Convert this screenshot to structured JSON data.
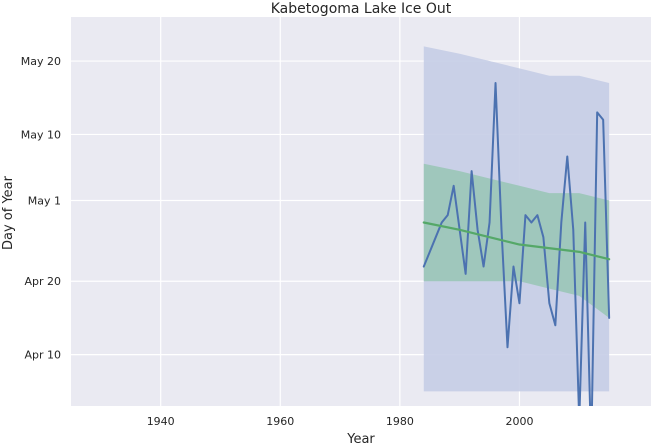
{
  "chart_data": {
    "type": "line",
    "title": "Kabetogoma Lake Ice Out",
    "xlabel": "Year",
    "ylabel": "Day of Year",
    "xlim": [
      1925,
      2022
    ],
    "ylim": [
      "Apr 3",
      "May 26"
    ],
    "grid": true,
    "legend": "none",
    "x_ticks": [
      "1940",
      "1960",
      "1980",
      "2000"
    ],
    "y_ticks": [
      {
        "date": "Apr 10",
        "label": "Apr 10"
      },
      {
        "date": "Apr 20",
        "label": "Apr 20"
      },
      {
        "date": "May 1",
        "label": "May 1"
      },
      {
        "date": "May 10",
        "label": "May 10"
      },
      {
        "date": "May 20",
        "label": "May 20"
      }
    ],
    "colors": {
      "plot_bg": "#eaeaf2",
      "grid": "#ffffff",
      "observed": "#4c72b0",
      "trend": "#55a868",
      "band_outer": "#c5cde6",
      "band_inner": "#98c6b4"
    },
    "series": [
      {
        "role": "observed",
        "x": [
          1984,
          1985,
          1986,
          1987,
          1988,
          1989,
          1990,
          1991,
          1992,
          1993,
          1994,
          1995,
          1996,
          1997,
          1998,
          1999,
          2000,
          2001,
          2002,
          2003,
          2004,
          2005,
          2006,
          2007,
          2008,
          2009,
          2010,
          2011,
          2012,
          2013,
          2014,
          2015
        ],
        "y": [
          "Apr 22",
          "Apr 24",
          "Apr 26",
          "Apr 28",
          "Apr 29",
          "May 3",
          "Apr 27",
          "Apr 21",
          "May 5",
          "Apr 27",
          "Apr 22",
          "Apr 28",
          "May 17",
          "Apr 27",
          "Apr 11",
          "Apr 22",
          "Apr 17",
          "Apr 29",
          "Apr 28",
          "Apr 29",
          "Apr 26",
          "Apr 17",
          "Apr 14",
          "Apr 28",
          "May 7",
          "Apr 27",
          "Apr 1",
          "Apr 28",
          "Mar 28",
          "May 13",
          "May 12",
          "Apr 15"
        ]
      },
      {
        "role": "trend",
        "x": [
          1984,
          1990,
          2000,
          2010,
          2015
        ],
        "y": [
          "Apr 28",
          "Apr 27",
          "Apr 25",
          "Apr 24",
          "Apr 23"
        ]
      },
      {
        "role": "band_outer",
        "x": [
          1984,
          1990,
          1995,
          2000,
          2005,
          2010,
          2015
        ],
        "lower": [
          "Apr 5",
          "Apr 5",
          "Apr 5",
          "Apr 5",
          "Apr 5",
          "Apr 5",
          "Apr 5"
        ],
        "upper": [
          "May 22",
          "May 21",
          "May 20",
          "May 19",
          "May 18",
          "May 18",
          "May 17"
        ]
      },
      {
        "role": "band_inner",
        "x": [
          1984,
          1990,
          1995,
          2000,
          2005,
          2010,
          2015
        ],
        "lower": [
          "Apr 20",
          "Apr 20",
          "Apr 20",
          "Apr 20",
          "Apr 19",
          "Apr 18",
          "Apr 15"
        ],
        "upper": [
          "May 6",
          "May 5",
          "May 4",
          "May 3",
          "May 2",
          "May 2",
          "May 1"
        ]
      }
    ]
  }
}
